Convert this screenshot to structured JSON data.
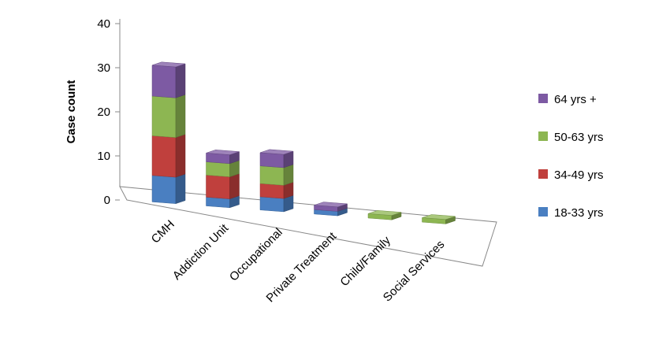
{
  "chart_data": {
    "type": "bar",
    "stacked": true,
    "three_d": true,
    "ylabel": "Case count",
    "xlabel": "",
    "title": "",
    "ylim": [
      0,
      40
    ],
    "yticks": [
      0,
      10,
      20,
      30,
      40
    ],
    "categories": [
      "CMH",
      "Addiction Unit",
      "Occupational",
      "Private Treatment",
      "Child/Family",
      "Social Services"
    ],
    "series": [
      {
        "name": "18-33 yrs",
        "color": "#4a7fc1",
        "values": [
          6,
          2,
          3,
          1,
          0,
          0
        ]
      },
      {
        "name": "34-49 yrs",
        "color": "#c0403d",
        "values": [
          9,
          5,
          3,
          0,
          0,
          0
        ]
      },
      {
        "name": "50-63 yrs",
        "color": "#8db652",
        "values": [
          9,
          3,
          4,
          0,
          1,
          1
        ]
      },
      {
        "name": "64 yrs +",
        "color": "#7d5aa3",
        "values": [
          7,
          2,
          3,
          1,
          0,
          0
        ]
      }
    ],
    "legend_order": [
      "64 yrs +",
      "50-63 yrs",
      "34-49 yrs",
      "18-33 yrs"
    ],
    "legend_position": "right",
    "grid": false
  }
}
